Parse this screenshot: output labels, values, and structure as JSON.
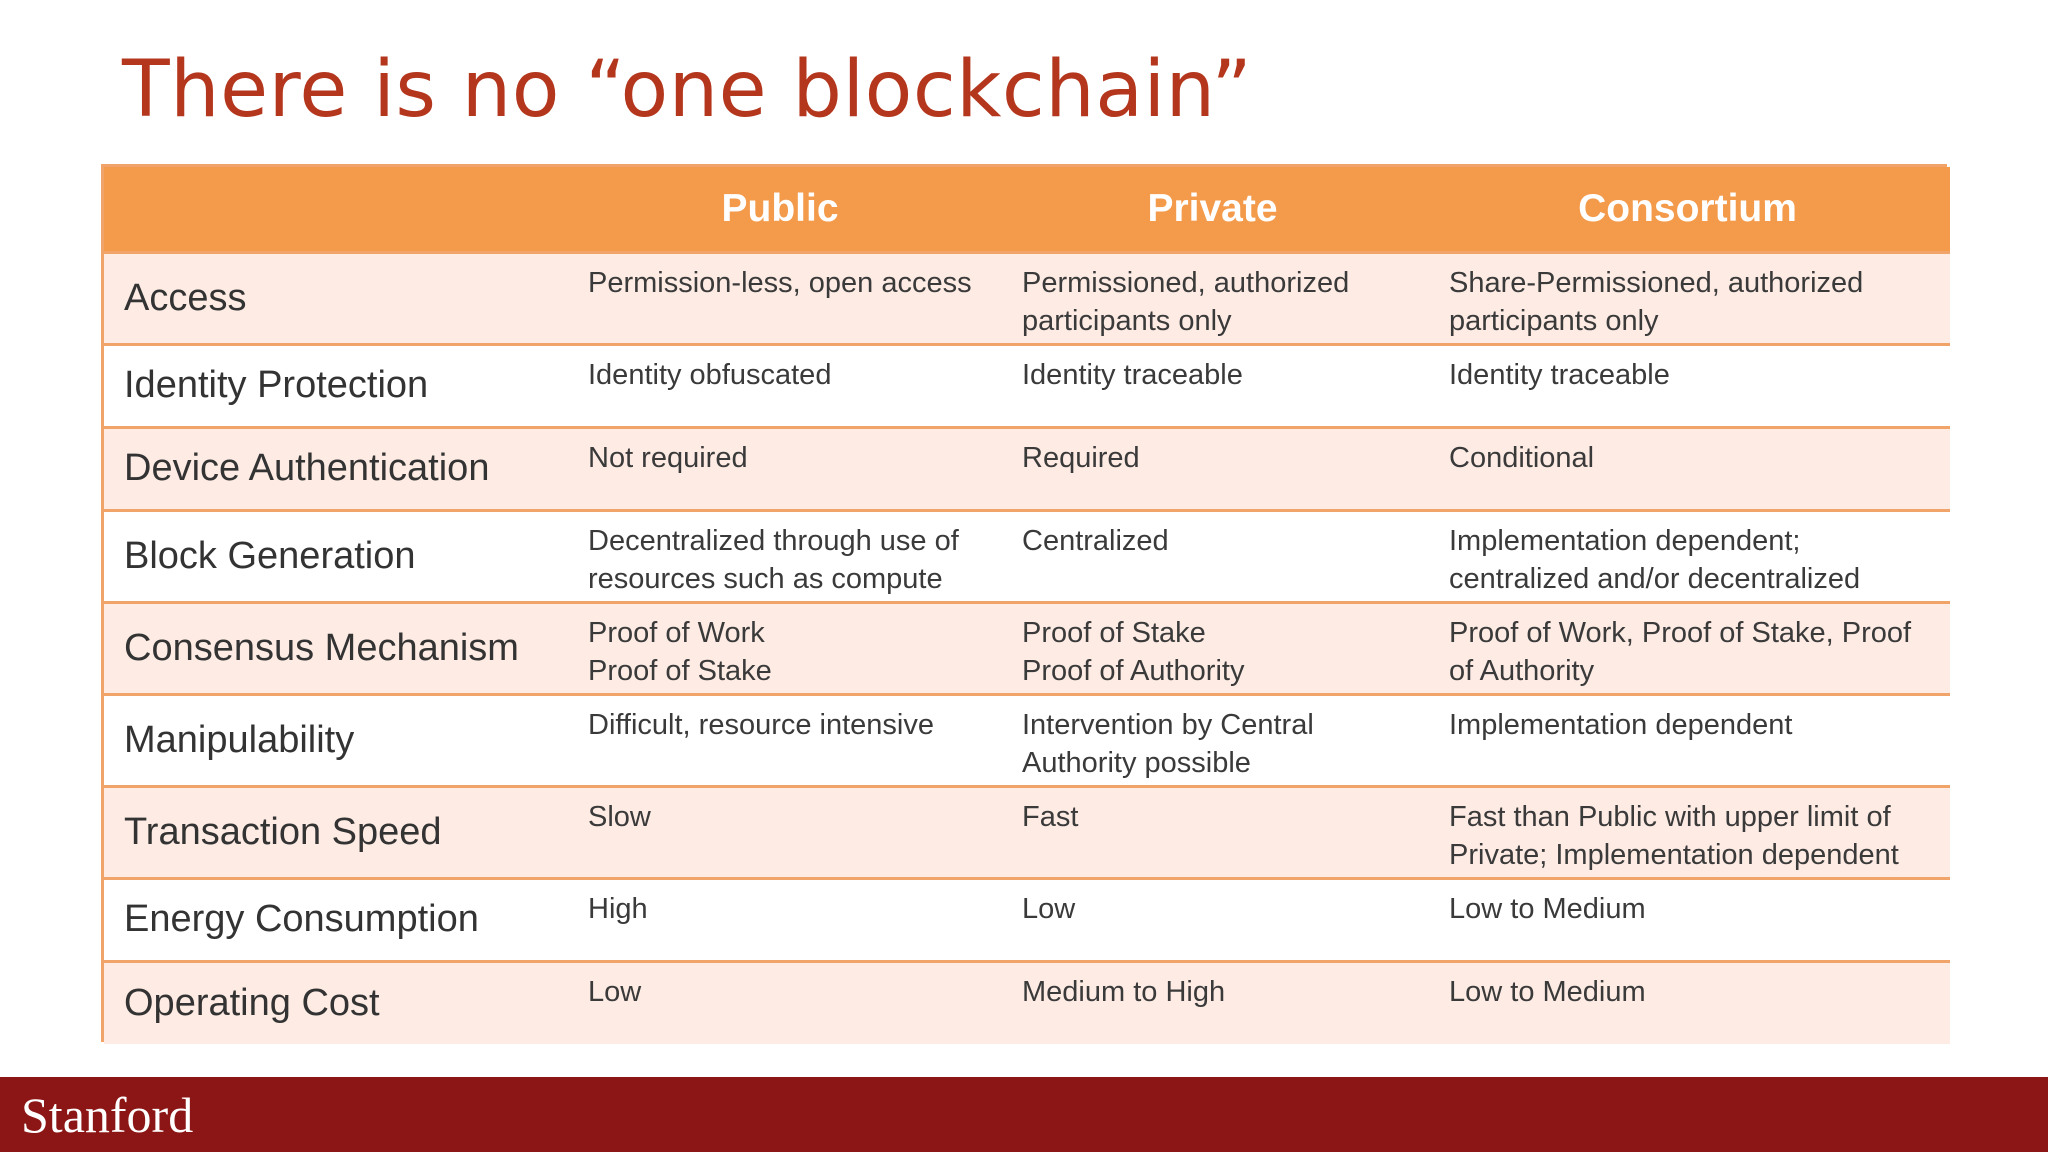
{
  "title": "There is no “one blockchain”",
  "table": {
    "headers": [
      "",
      "Public",
      "Private",
      "Consortium"
    ],
    "rows": [
      {
        "label": "Access",
        "public": "Permission-less, open access",
        "private": "Permissioned, authorized\nparticipants only",
        "consortium": "Share-Permissioned, authorized\nparticipants only"
      },
      {
        "label": "Identity Protection",
        "public": "Identity obfuscated",
        "private": "Identity traceable",
        "consortium": "Identity traceable"
      },
      {
        "label": "Device Authentication",
        "public": "Not required",
        "private": "Required",
        "consortium": "Conditional"
      },
      {
        "label": "Block Generation",
        "public": "Decentralized through use of\nresources such as compute",
        "private": "Centralized",
        "consortium": "Implementation dependent;\ncentralized and/or decentralized"
      },
      {
        "label": "Consensus Mechanism",
        "public": "Proof of Work\nProof of Stake",
        "private": "Proof of Stake\nProof of Authority",
        "consortium": "Proof of Work, Proof of Stake, Proof\nof Authority"
      },
      {
        "label": "Manipulability",
        "public": "Difficult, resource intensive",
        "private": "Intervention by Central\nAuthority possible",
        "consortium": "Implementation dependent"
      },
      {
        "label": "Transaction Speed",
        "public": "Slow",
        "private": "Fast",
        "consortium": "Fast than Public with upper limit of\nPrivate; Implementation dependent"
      },
      {
        "label": "Energy Consumption",
        "public": "High",
        "private": "Low",
        "consortium": "Low to Medium"
      },
      {
        "label": "Operating Cost",
        "public": "Low",
        "private": "Medium to High",
        "consortium": "Low to Medium"
      }
    ]
  },
  "footer": {
    "logo_text": "Stanford",
    "color": "#8c1515"
  },
  "colors": {
    "title": "#b4361d",
    "header_bg": "#f39a4b",
    "border": "#f1a46a",
    "band": "#fdebe4"
  }
}
